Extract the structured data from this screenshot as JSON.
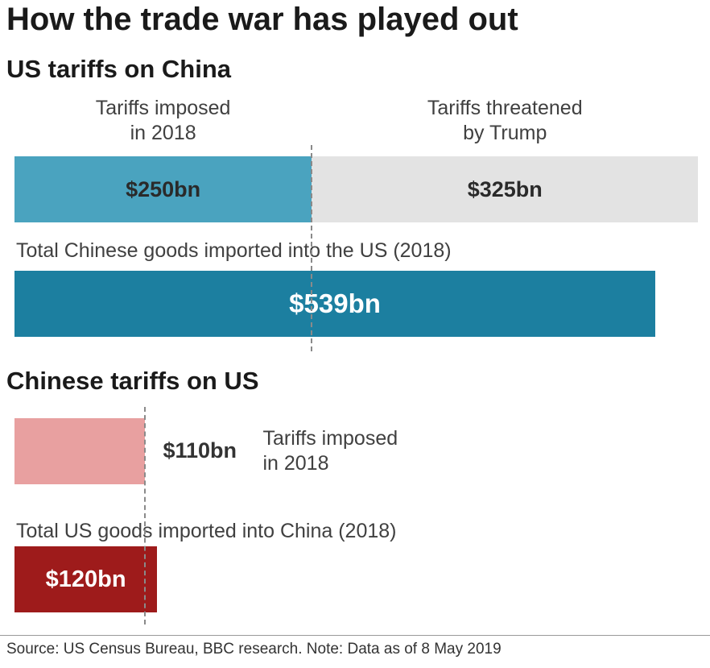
{
  "title": "How the trade war has played out",
  "source": "Source: US Census Bureau, BBC research. Note: Data as of 8 May 2019",
  "chart_data": [
    {
      "type": "bar",
      "title": "US tariffs on China",
      "segments": [
        {
          "label_line1": "Tariffs imposed",
          "label_line2": "in 2018",
          "value": 250,
          "value_label": "$250bn",
          "color": "#4aa3bf"
        },
        {
          "label_line1": "Tariffs threatened",
          "label_line2": "by Trump",
          "value": 325,
          "value_label": "$325bn",
          "color": "#e3e3e3"
        }
      ],
      "total": {
        "label": "Total Chinese goods imported into the US (2018)",
        "value": 539,
        "value_label": "$539bn",
        "color": "#1c7fa0"
      },
      "unit": "$bn"
    },
    {
      "type": "bar",
      "title": "Chinese tariffs on US",
      "segments": [
        {
          "label_line1": "Tariffs imposed",
          "label_line2": "in 2018",
          "value": 110,
          "value_label": "$110bn",
          "color": "#e8a0a0"
        }
      ],
      "total": {
        "label": "Total US goods imported into China (2018)",
        "value": 120,
        "value_label": "$120bn",
        "color": "#9e1b1b"
      },
      "unit": "$bn"
    }
  ]
}
